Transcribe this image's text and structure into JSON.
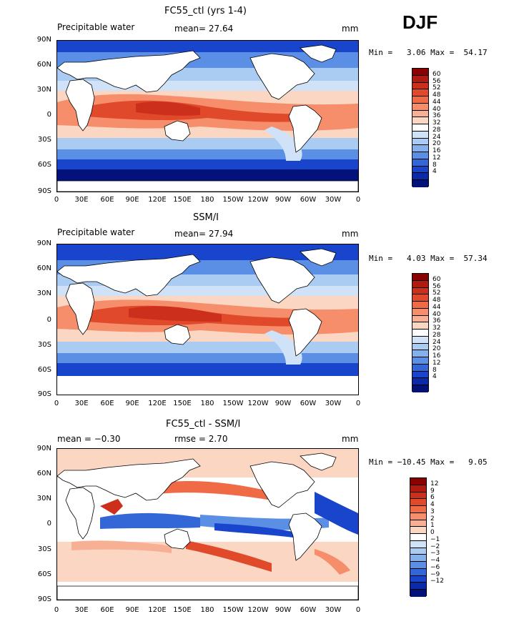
{
  "season": "DJF",
  "lat_labels": [
    "90N",
    "60N",
    "30N",
    "0",
    "30S",
    "60S",
    "90S"
  ],
  "lon_labels": [
    "0",
    "30E",
    "60E",
    "90E",
    "120E",
    "150E",
    "180",
    "150W",
    "120W",
    "90W",
    "60W",
    "30W",
    "0"
  ],
  "panels": [
    {
      "title": "FC55_ctl (yrs 1-4)",
      "left_label": "Precipitable water",
      "center_label": "mean=  27.64",
      "unit": "mm",
      "minmax": "Min =   3.06 Max =  54.17",
      "colorbar": {
        "labels": [
          "60",
          "56",
          "52",
          "48",
          "44",
          "40",
          "36",
          "32",
          "28",
          "24",
          "20",
          "16",
          "12",
          "8",
          "4"
        ],
        "colors": [
          "#8b0000",
          "#b01a10",
          "#cc2f1c",
          "#e04a2b",
          "#f06a45",
          "#f68d6b",
          "#f8b094",
          "#fbd6c3",
          "#ffffff",
          "#cfe2f7",
          "#aacbf2",
          "#84b0ec",
          "#5b8fe5",
          "#3367d8",
          "#1845cc",
          "#0a2aa8",
          "#03127a"
        ]
      }
    },
    {
      "title": "SSM/I",
      "left_label": "Precipitable water",
      "center_label": "mean=  27.94",
      "unit": "mm",
      "minmax": "Min =   4.03 Max =  57.34",
      "colorbar": {
        "labels": [
          "60",
          "56",
          "52",
          "48",
          "44",
          "40",
          "36",
          "32",
          "28",
          "24",
          "20",
          "16",
          "12",
          "8",
          "4"
        ],
        "colors": [
          "#8b0000",
          "#b01a10",
          "#cc2f1c",
          "#e04a2b",
          "#f06a45",
          "#f68d6b",
          "#f8b094",
          "#fbd6c3",
          "#ffffff",
          "#cfe2f7",
          "#aacbf2",
          "#84b0ec",
          "#5b8fe5",
          "#3367d8",
          "#1845cc",
          "#0a2aa8",
          "#03127a"
        ]
      }
    },
    {
      "title": "FC55_ctl - SSM/I",
      "left_label": "mean =  −0.30",
      "center_label": "rmse =   2.70",
      "unit": "mm",
      "minmax": "Min = −10.45 Max =   9.05",
      "colorbar": {
        "labels": [
          "12",
          "9",
          "6",
          "4",
          "3",
          "2",
          "1",
          "0",
          "−1",
          "−2",
          "−3",
          "−4",
          "−6",
          "−9",
          "−12"
        ],
        "colors": [
          "#8b0000",
          "#b01a10",
          "#cc2f1c",
          "#e04a2b",
          "#f06a45",
          "#f68d6b",
          "#f8b094",
          "#fbd6c3",
          "#ffffff",
          "#cfe2f7",
          "#aacbf2",
          "#84b0ec",
          "#5b8fe5",
          "#3367d8",
          "#1845cc",
          "#0a2aa8",
          "#03127a"
        ]
      }
    }
  ]
}
